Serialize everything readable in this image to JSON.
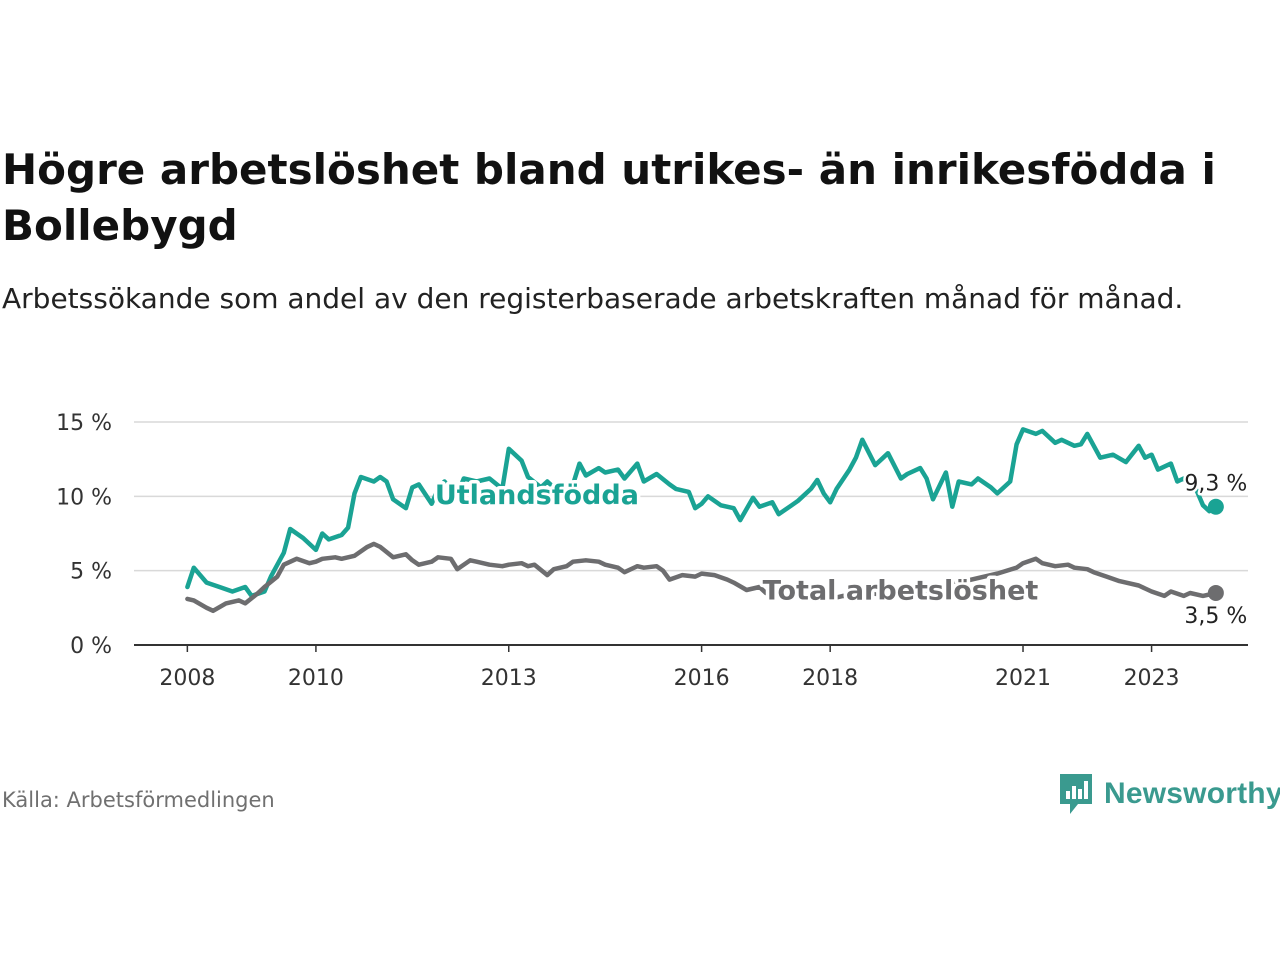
{
  "header": {
    "title": "Högre arbetslöshet bland utrikes- än inrikesfödda i Bollebygd",
    "subtitle": "Arbetssökande som andel av den registerbaserade arbetskraften månad för månad."
  },
  "footer": {
    "source": "Källa: Arbetsförmedlingen",
    "brand": "Newsworthy"
  },
  "colors": {
    "foreign": "#1aa394",
    "total": "#6d6d6f",
    "grid": "#d9d9d9",
    "brand": "#3a9a8f"
  },
  "chart_data": {
    "type": "line",
    "title": "Högre arbetslöshet bland utrikes- än inrikesfödda i Bollebygd",
    "xlabel": "",
    "ylabel": "",
    "ylim": [
      0,
      15
    ],
    "xlim": [
      2007.17,
      2024.5
    ],
    "yticks": [
      {
        "value": 0,
        "label": "0 %"
      },
      {
        "value": 5,
        "label": "5 %"
      },
      {
        "value": 10,
        "label": "10 %"
      },
      {
        "value": 15,
        "label": "15 %"
      }
    ],
    "xticks": [
      {
        "value": 2008,
        "label": "2008"
      },
      {
        "value": 2010,
        "label": "2010"
      },
      {
        "value": 2013,
        "label": "2013"
      },
      {
        "value": 2016,
        "label": "2016"
      },
      {
        "value": 2018,
        "label": "2018"
      },
      {
        "value": 2021,
        "label": "2021"
      },
      {
        "value": 2023,
        "label": "2023"
      }
    ],
    "grid": true,
    "series": [
      {
        "name": "Utlandsfödda",
        "key": "foreign",
        "end_label": "9,3 %",
        "points": [
          [
            2008.0,
            3.9
          ],
          [
            2008.1,
            5.2
          ],
          [
            2008.3,
            4.2
          ],
          [
            2008.5,
            3.9
          ],
          [
            2008.7,
            3.6
          ],
          [
            2008.9,
            3.9
          ],
          [
            2009.0,
            3.3
          ],
          [
            2009.2,
            3.6
          ],
          [
            2009.3,
            4.6
          ],
          [
            2009.5,
            6.2
          ],
          [
            2009.6,
            7.8
          ],
          [
            2009.8,
            7.2
          ],
          [
            2010.0,
            6.4
          ],
          [
            2010.1,
            7.5
          ],
          [
            2010.2,
            7.1
          ],
          [
            2010.4,
            7.4
          ],
          [
            2010.5,
            7.9
          ],
          [
            2010.6,
            10.2
          ],
          [
            2010.7,
            11.3
          ],
          [
            2010.9,
            11.0
          ],
          [
            2011.0,
            11.3
          ],
          [
            2011.1,
            11.0
          ],
          [
            2011.2,
            9.8
          ],
          [
            2011.4,
            9.2
          ],
          [
            2011.5,
            10.6
          ],
          [
            2011.6,
            10.8
          ],
          [
            2011.8,
            9.5
          ],
          [
            2011.9,
            10.5
          ],
          [
            2012.0,
            11.0
          ],
          [
            2012.2,
            10.1
          ],
          [
            2012.3,
            11.2
          ],
          [
            2012.5,
            11.0
          ],
          [
            2012.7,
            11.2
          ],
          [
            2012.9,
            10.5
          ],
          [
            2013.0,
            13.2
          ],
          [
            2013.2,
            12.4
          ],
          [
            2013.3,
            11.3
          ],
          [
            2013.5,
            10.6
          ],
          [
            2013.6,
            11.0
          ],
          [
            2013.8,
            10.2
          ],
          [
            2013.9,
            10.6
          ],
          [
            2014.0,
            10.8
          ],
          [
            2014.1,
            12.2
          ],
          [
            2014.2,
            11.4
          ],
          [
            2014.4,
            11.9
          ],
          [
            2014.5,
            11.6
          ],
          [
            2014.7,
            11.8
          ],
          [
            2014.8,
            11.2
          ],
          [
            2015.0,
            12.2
          ],
          [
            2015.1,
            11.0
          ],
          [
            2015.3,
            11.5
          ],
          [
            2015.5,
            10.8
          ],
          [
            2015.6,
            10.5
          ],
          [
            2015.8,
            10.3
          ],
          [
            2015.9,
            9.2
          ],
          [
            2016.0,
            9.5
          ],
          [
            2016.1,
            10.0
          ],
          [
            2016.3,
            9.4
          ],
          [
            2016.5,
            9.2
          ],
          [
            2016.6,
            8.4
          ],
          [
            2016.8,
            9.9
          ],
          [
            2016.9,
            9.3
          ],
          [
            2017.1,
            9.6
          ],
          [
            2017.2,
            8.8
          ],
          [
            2017.4,
            9.4
          ],
          [
            2017.5,
            9.7
          ],
          [
            2017.7,
            10.5
          ],
          [
            2017.8,
            11.1
          ],
          [
            2017.9,
            10.2
          ],
          [
            2018.0,
            9.6
          ],
          [
            2018.1,
            10.5
          ],
          [
            2018.3,
            11.8
          ],
          [
            2018.4,
            12.6
          ],
          [
            2018.5,
            13.8
          ],
          [
            2018.7,
            12.1
          ],
          [
            2018.8,
            12.5
          ],
          [
            2018.9,
            12.9
          ],
          [
            2019.1,
            11.2
          ],
          [
            2019.2,
            11.5
          ],
          [
            2019.4,
            11.9
          ],
          [
            2019.5,
            11.2
          ],
          [
            2019.6,
            9.8
          ],
          [
            2019.8,
            11.6
          ],
          [
            2019.9,
            9.3
          ],
          [
            2020.0,
            11.0
          ],
          [
            2020.2,
            10.8
          ],
          [
            2020.3,
            11.2
          ],
          [
            2020.5,
            10.6
          ],
          [
            2020.6,
            10.2
          ],
          [
            2020.8,
            11.0
          ],
          [
            2020.9,
            13.5
          ],
          [
            2021.0,
            14.5
          ],
          [
            2021.2,
            14.2
          ],
          [
            2021.3,
            14.4
          ],
          [
            2021.5,
            13.6
          ],
          [
            2021.6,
            13.8
          ],
          [
            2021.8,
            13.4
          ],
          [
            2021.9,
            13.5
          ],
          [
            2022.0,
            14.2
          ],
          [
            2022.2,
            12.6
          ],
          [
            2022.4,
            12.8
          ],
          [
            2022.6,
            12.3
          ],
          [
            2022.8,
            13.4
          ],
          [
            2022.9,
            12.6
          ],
          [
            2023.0,
            12.8
          ],
          [
            2023.1,
            11.8
          ],
          [
            2023.3,
            12.2
          ],
          [
            2023.4,
            11.0
          ],
          [
            2023.5,
            11.2
          ],
          [
            2023.7,
            10.4
          ],
          [
            2023.8,
            9.4
          ],
          [
            2023.9,
            9.0
          ],
          [
            2024.0,
            9.3
          ]
        ]
      },
      {
        "name": "Total arbetslöshet",
        "key": "total",
        "end_label": "3,5 %",
        "points": [
          [
            2008.0,
            3.1
          ],
          [
            2008.1,
            3.0
          ],
          [
            2008.3,
            2.5
          ],
          [
            2008.4,
            2.3
          ],
          [
            2008.6,
            2.8
          ],
          [
            2008.8,
            3.0
          ],
          [
            2008.9,
            2.8
          ],
          [
            2009.1,
            3.5
          ],
          [
            2009.2,
            3.9
          ],
          [
            2009.4,
            4.6
          ],
          [
            2009.5,
            5.4
          ],
          [
            2009.7,
            5.8
          ],
          [
            2009.9,
            5.5
          ],
          [
            2010.0,
            5.6
          ],
          [
            2010.1,
            5.8
          ],
          [
            2010.3,
            5.9
          ],
          [
            2010.4,
            5.8
          ],
          [
            2010.6,
            6.0
          ],
          [
            2010.8,
            6.6
          ],
          [
            2010.9,
            6.8
          ],
          [
            2011.0,
            6.6
          ],
          [
            2011.2,
            5.9
          ],
          [
            2011.4,
            6.1
          ],
          [
            2011.5,
            5.7
          ],
          [
            2011.6,
            5.4
          ],
          [
            2011.8,
            5.6
          ],
          [
            2011.9,
            5.9
          ],
          [
            2012.1,
            5.8
          ],
          [
            2012.2,
            5.1
          ],
          [
            2012.4,
            5.7
          ],
          [
            2012.5,
            5.6
          ],
          [
            2012.7,
            5.4
          ],
          [
            2012.9,
            5.3
          ],
          [
            2013.0,
            5.4
          ],
          [
            2013.2,
            5.5
          ],
          [
            2013.3,
            5.3
          ],
          [
            2013.4,
            5.4
          ],
          [
            2013.6,
            4.7
          ],
          [
            2013.7,
            5.1
          ],
          [
            2013.9,
            5.3
          ],
          [
            2014.0,
            5.6
          ],
          [
            2014.2,
            5.7
          ],
          [
            2014.4,
            5.6
          ],
          [
            2014.5,
            5.4
          ],
          [
            2014.7,
            5.2
          ],
          [
            2014.8,
            4.9
          ],
          [
            2015.0,
            5.3
          ],
          [
            2015.1,
            5.2
          ],
          [
            2015.3,
            5.3
          ],
          [
            2015.4,
            5.0
          ],
          [
            2015.5,
            4.4
          ],
          [
            2015.7,
            4.7
          ],
          [
            2015.9,
            4.6
          ],
          [
            2016.0,
            4.8
          ],
          [
            2016.2,
            4.7
          ],
          [
            2016.4,
            4.4
          ],
          [
            2016.5,
            4.2
          ],
          [
            2016.7,
            3.7
          ],
          [
            2016.9,
            3.9
          ],
          [
            2017.0,
            3.5
          ],
          [
            2017.2,
            3.6
          ],
          [
            2017.4,
            3.4
          ],
          [
            2017.5,
            3.3
          ],
          [
            2017.7,
            3.2
          ],
          [
            2017.9,
            3.4
          ],
          [
            2018.0,
            3.1
          ],
          [
            2018.2,
            3.3
          ],
          [
            2018.4,
            3.2
          ],
          [
            2018.6,
            3.5
          ],
          [
            2018.8,
            3.4
          ],
          [
            2019.0,
            3.6
          ],
          [
            2019.2,
            3.5
          ],
          [
            2019.4,
            3.7
          ],
          [
            2019.6,
            3.6
          ],
          [
            2019.8,
            3.9
          ],
          [
            2020.0,
            4.2
          ],
          [
            2020.3,
            4.5
          ],
          [
            2020.6,
            4.8
          ],
          [
            2020.9,
            5.2
          ],
          [
            2021.0,
            5.5
          ],
          [
            2021.2,
            5.8
          ],
          [
            2021.3,
            5.5
          ],
          [
            2021.5,
            5.3
          ],
          [
            2021.7,
            5.4
          ],
          [
            2021.8,
            5.2
          ],
          [
            2022.0,
            5.1
          ],
          [
            2022.1,
            4.9
          ],
          [
            2022.3,
            4.6
          ],
          [
            2022.5,
            4.3
          ],
          [
            2022.6,
            4.2
          ],
          [
            2022.8,
            4.0
          ],
          [
            2022.9,
            3.8
          ],
          [
            2023.0,
            3.6
          ],
          [
            2023.2,
            3.3
          ],
          [
            2023.3,
            3.6
          ],
          [
            2023.5,
            3.3
          ],
          [
            2023.6,
            3.5
          ],
          [
            2023.8,
            3.3
          ],
          [
            2024.0,
            3.5
          ]
        ]
      }
    ],
    "annotations": [
      {
        "text": "Utlandsfödda",
        "series": "foreign"
      },
      {
        "text": "Total arbetslöshet",
        "series": "total"
      }
    ]
  }
}
